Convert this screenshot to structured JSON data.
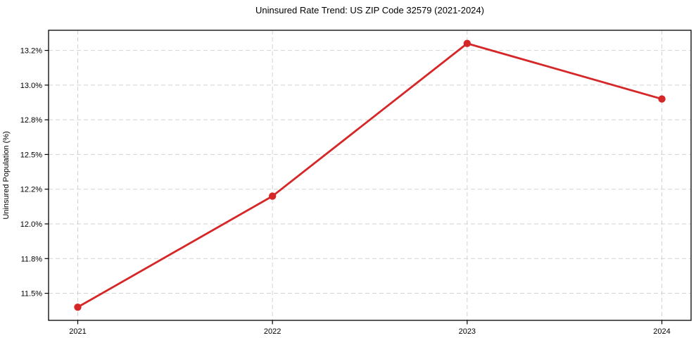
{
  "chart_data": {
    "type": "line",
    "title": "Uninsured Rate Trend: US ZIP Code 32579 (2021-2024)",
    "xlabel": "",
    "ylabel": "Uninsured Population (%)",
    "x": [
      2021,
      2022,
      2023,
      2024
    ],
    "values": [
      11.4,
      12.2,
      13.3,
      12.9
    ],
    "xticks": {
      "values": [
        2021,
        2022,
        2023,
        2024
      ],
      "labels": [
        "2021",
        "2022",
        "2023",
        "2024"
      ]
    },
    "yticks": {
      "values": [
        11.5,
        11.75,
        12.0,
        12.25,
        12.5,
        12.75,
        13.0,
        13.25
      ],
      "labels": [
        "11.5%",
        "11.8%",
        "12.0%",
        "12.2%",
        "12.5%",
        "12.8%",
        "13.0%",
        "13.2%"
      ]
    },
    "xlim": [
      2020.85,
      2024.15
    ],
    "ylim": [
      11.305,
      13.395
    ],
    "grid": true,
    "grid_style": "dashed",
    "legend": null,
    "line_color": "#d62728",
    "marker": "circle",
    "grid_color": "#d2d2d2",
    "axis_color": "#000000",
    "background_color": "#ffffff",
    "tick_font_size": 11,
    "title_font_size": 13
  }
}
